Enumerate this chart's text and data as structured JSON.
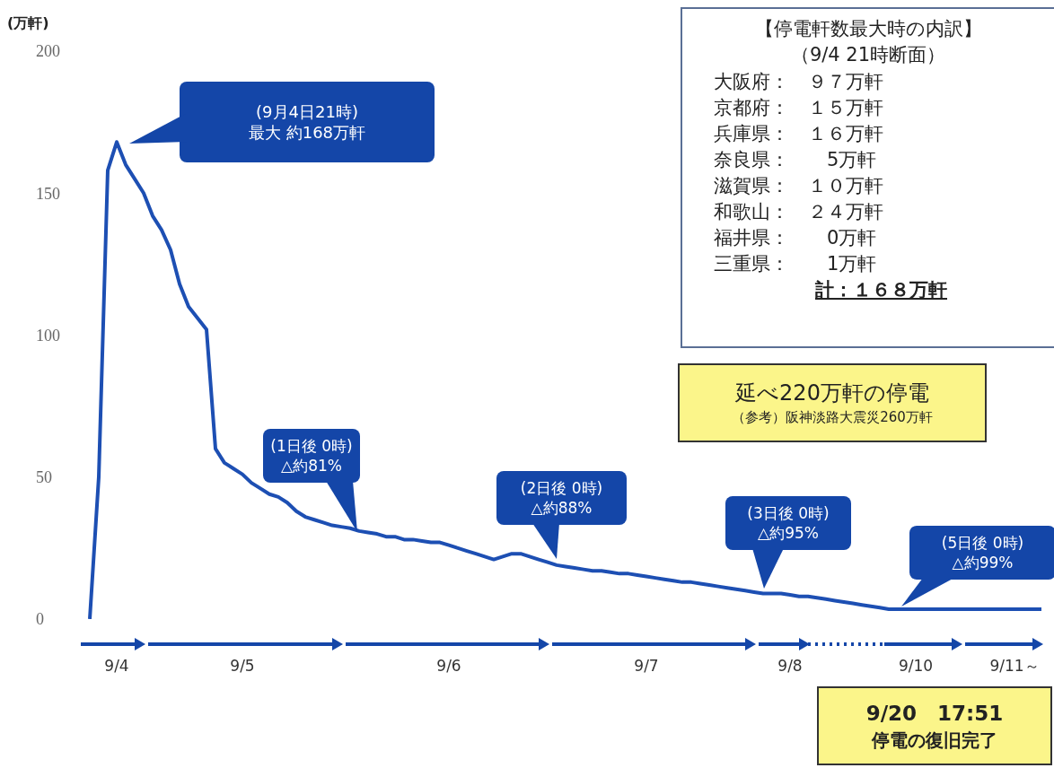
{
  "chart_data": {
    "type": "line",
    "ylabel": "(万軒)",
    "categories": [
      null,
      null,
      null,
      "9/4",
      null,
      null,
      null,
      null,
      null,
      null,
      null,
      null,
      null,
      null,
      null,
      null,
      null,
      "9/5",
      null,
      null,
      null,
      null,
      null,
      null,
      null,
      null,
      null,
      null,
      null,
      null,
      null,
      null,
      null,
      null,
      null,
      null,
      null,
      null,
      null,
      null,
      "9/6",
      null,
      null,
      null,
      null,
      null,
      null,
      null,
      null,
      null,
      null,
      null,
      null,
      null,
      null,
      null,
      null,
      null,
      null,
      null,
      null,
      null,
      "9/7",
      null,
      null,
      null,
      null,
      null,
      null,
      null,
      null,
      null,
      null,
      null,
      null,
      null,
      null,
      null,
      "9/8",
      null,
      null,
      null,
      null,
      null,
      null,
      null,
      null,
      null,
      null,
      null,
      null,
      null,
      "9/10",
      null,
      null,
      null,
      null,
      null,
      null,
      null,
      null,
      null,
      null,
      "9/11～",
      null,
      null,
      null
    ],
    "values": [
      0,
      50,
      158,
      168,
      160,
      155,
      150,
      142,
      137,
      130,
      118,
      110,
      106,
      102,
      60,
      55,
      53,
      51,
      48,
      46,
      44,
      43,
      41,
      38,
      36,
      35,
      34,
      33,
      32.5,
      32,
      31,
      30.5,
      30,
      29,
      29,
      28,
      28,
      27.5,
      27,
      27,
      26,
      25,
      24,
      23,
      22,
      21,
      22,
      23,
      23,
      22,
      21,
      20,
      19,
      18.5,
      18,
      17.5,
      17,
      17,
      16.5,
      16,
      16,
      15.5,
      15,
      14.5,
      14,
      13.5,
      13,
      13,
      12.5,
      12,
      11.5,
      11,
      10.5,
      10,
      9.5,
      9,
      9,
      9,
      8.5,
      8,
      8,
      7.5,
      7,
      6.5,
      6,
      5.5,
      5,
      4.5,
      4,
      3.5,
      3.5,
      3.5,
      3.5,
      3.5,
      3.5,
      3.5,
      3.5,
      3.5,
      3.5,
      3.5,
      3.5,
      3.5,
      3.5,
      3.5,
      3.5,
      3.5,
      3.5
    ],
    "color": "#1d4fb3",
    "marker": "none",
    "line_style": "solid",
    "ylim": [
      0,
      200
    ],
    "yticks": [
      0,
      50,
      100,
      150,
      200
    ],
    "annotations": [
      "(9月4日21時)",
      "最大 約168万軒",
      "(1日後 0時)",
      "△約81%",
      "(2日後 0時)",
      "△約88%",
      "(3日後 0時)",
      "△約95%",
      "(5日後 0時)",
      "△約99%",
      "【停電軒数最大時の内訳】",
      "（9/4 21時断面）",
      "大阪府：　９７万軒",
      "京都府：　１５万軒",
      "兵庫県：　１６万軒",
      "奈良県：　　5万軒",
      "滋賀県：　１０万軒",
      "和歌山：　２４万軒",
      "福井県：　　0万軒",
      "三重県：　　1万軒",
      "計：１６８万軒",
      "延べ220万軒の停電",
      "（参考）阪神淡路大震災260万軒",
      "9/20　17:51",
      "停電の復旧完了"
    ]
  }
}
